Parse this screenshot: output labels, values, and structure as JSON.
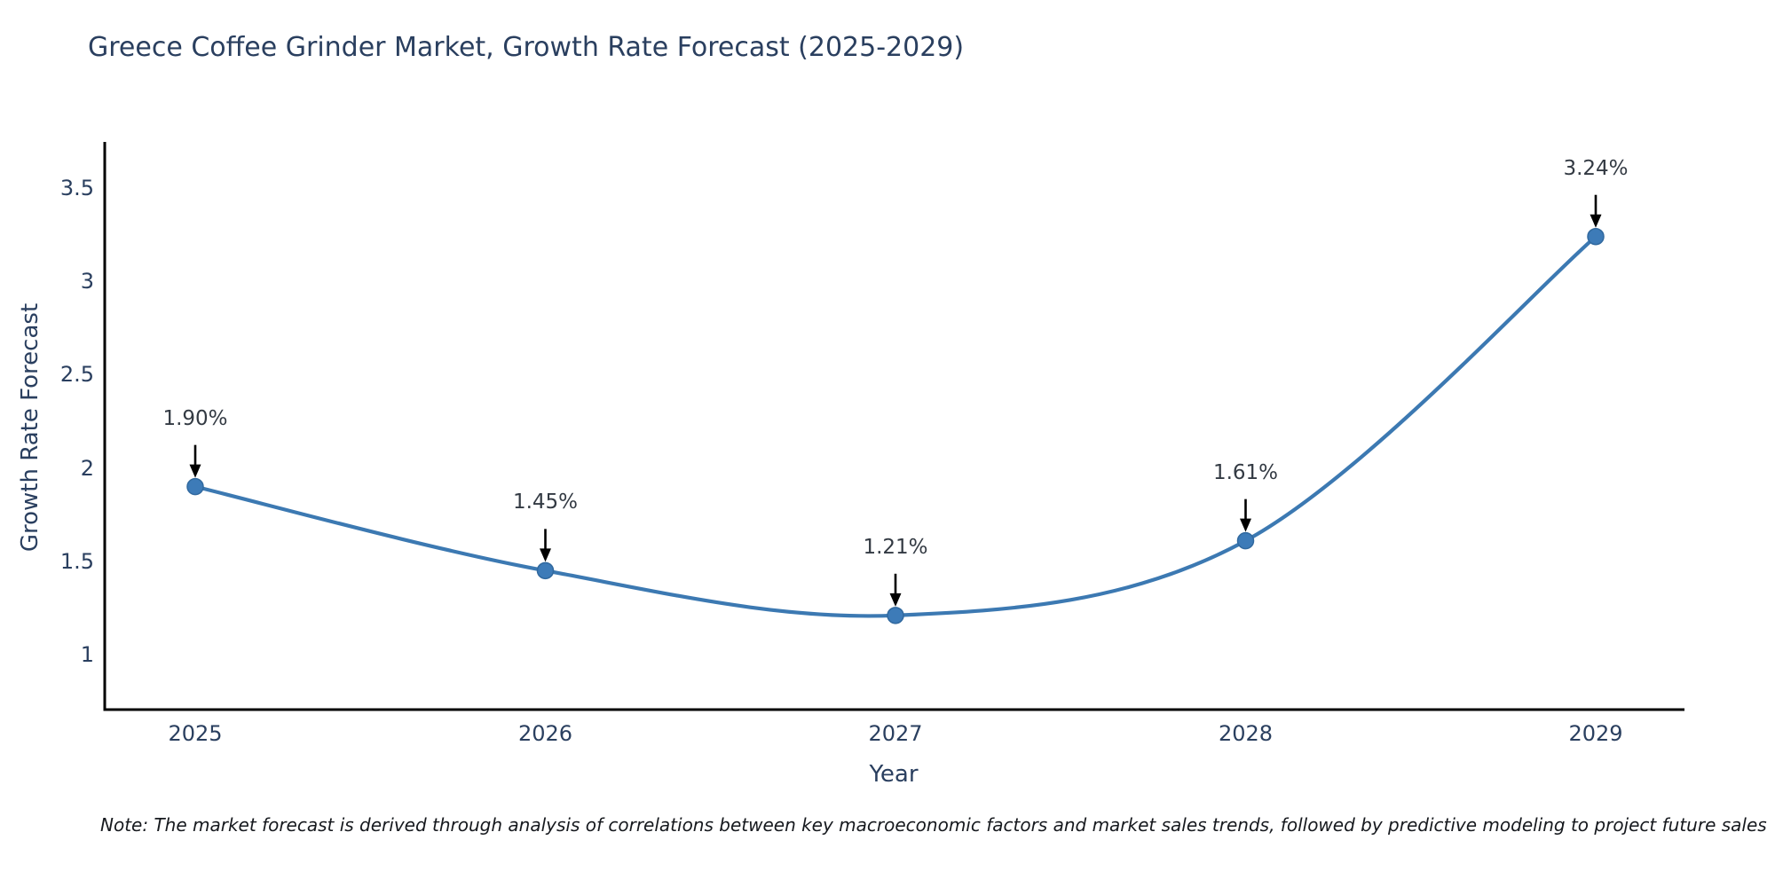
{
  "chart_data": {
    "type": "line",
    "title": "Greece Coffee Grinder Market, Growth Rate Forecast (2025-2029)",
    "xlabel": "Year",
    "ylabel": "Growth Rate Forecast",
    "categories": [
      2025,
      2026,
      2027,
      2028,
      2029
    ],
    "values": [
      1.9,
      1.45,
      1.21,
      1.61,
      3.24
    ],
    "point_labels": [
      "1.90%",
      "1.45%",
      "1.21%",
      "1.61%",
      "3.24%"
    ],
    "xtick_labels": [
      "2025",
      "2026",
      "2027",
      "2028",
      "2029"
    ],
    "ytick_values": [
      1,
      1.5,
      2,
      2.5,
      3,
      3.5
    ],
    "ytick_labels": [
      "1",
      "1.5",
      "2",
      "2.5",
      "3",
      "3.5"
    ],
    "xlim": [
      2024.74,
      2029.26
    ],
    "ylim": [
      0.7,
      3.75
    ],
    "grid": false,
    "legend": "none",
    "line_color": "#3c79b2",
    "marker_color": "#3d7bb8",
    "marker_edge_color": "#31699f",
    "axis_color": "#000000",
    "arrow_color": "#000000",
    "text_color": "#2a3f5f",
    "annotation_color": "#333a43"
  },
  "note": {
    "text": "Note: The market forecast is derived through analysis of correlations between key macroeconomic factors and market sales trends, followed by predictive modeling to project future sales"
  }
}
